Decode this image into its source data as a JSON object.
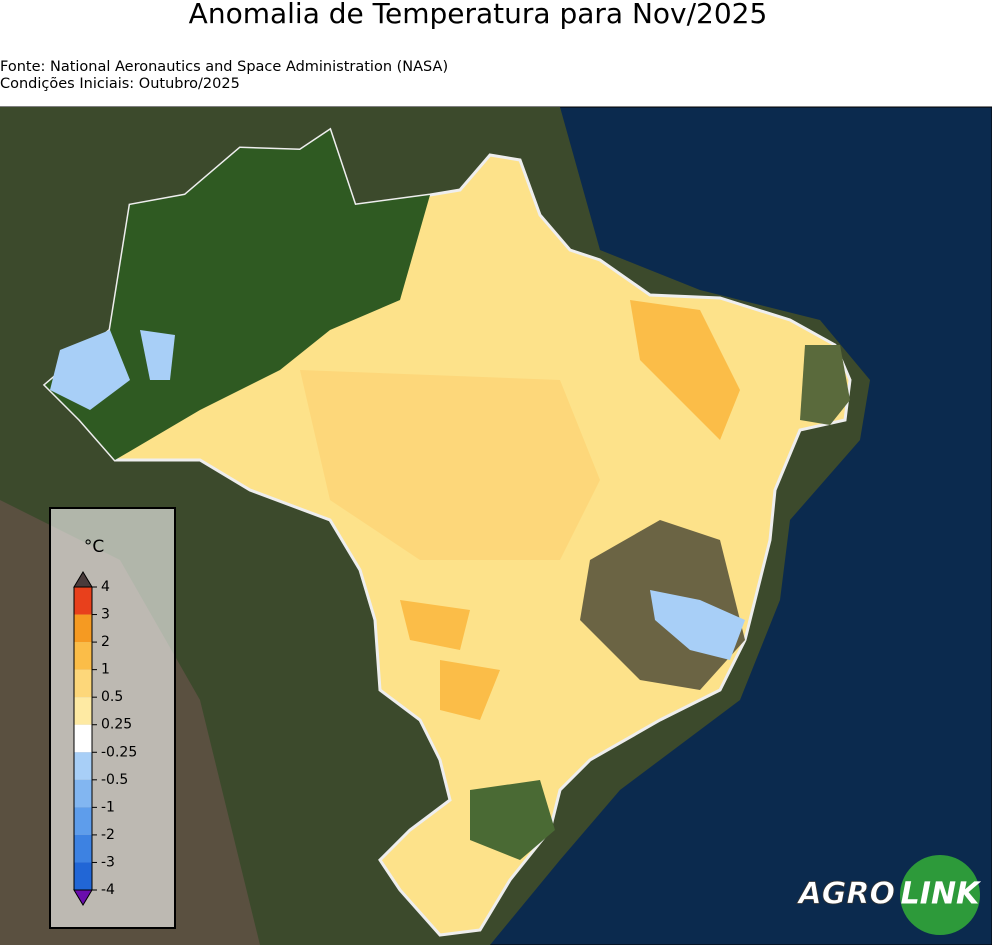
{
  "header": {
    "title": "Anomalia de Temperatura para Nov/2025",
    "source": "Fonte: National Aeronautics and Space Administration (NASA)",
    "conditions": "Condições Iniciais: Outubro/2025"
  },
  "legend": {
    "unit": "°C",
    "ticks": [
      4,
      3,
      2,
      1,
      0.5,
      0.25,
      -0.25,
      -0.5,
      -1,
      -2,
      -3,
      -4
    ],
    "colors": [
      "#e8401c",
      "#f59a22",
      "#fbbd48",
      "#fdd77a",
      "#feeaa3",
      "#ffffff",
      "#a8cff7",
      "#82b6f1",
      "#5e9deb",
      "#3d82e2",
      "#2166d6"
    ]
  },
  "logo": {
    "left": "AGRO",
    "right": "LINK"
  }
}
